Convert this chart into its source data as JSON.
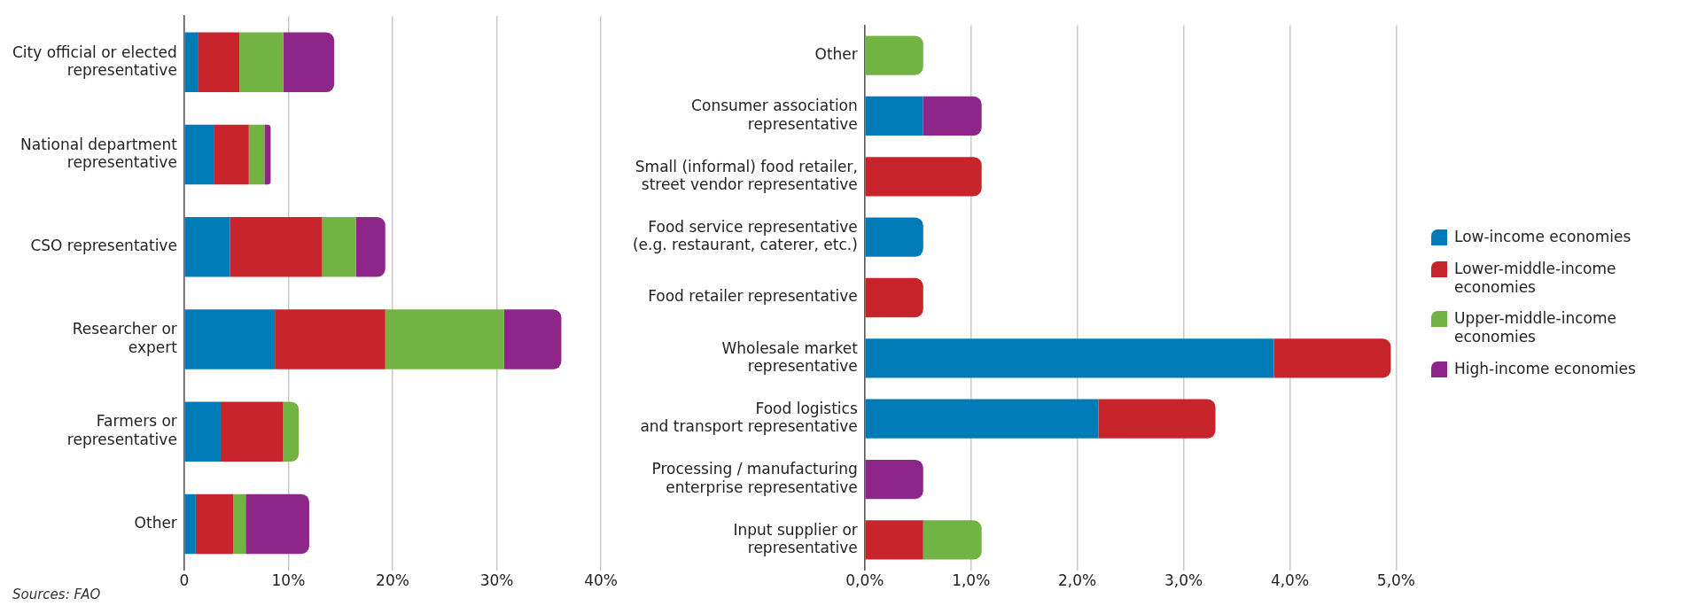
{
  "chart_data": [
    {
      "type": "bar",
      "orientation": "horizontal",
      "stacked": true,
      "grid": "x",
      "legend": false,
      "categories": [
        "City official or elected\nrepresentative",
        "National department\nrepresentative",
        "CSO representative",
        "Researcher or\nexpert",
        "Farmers or\nrepresentative",
        "Other"
      ],
      "series": [
        {
          "color": "#007bb8",
          "values": [
            1.3,
            2.9,
            4.4,
            8.7,
            3.5,
            1.1
          ]
        },
        {
          "color": "#c8242b",
          "values": [
            4.0,
            3.3,
            8.8,
            10.6,
            6.0,
            3.6
          ]
        },
        {
          "color": "#72b443",
          "values": [
            4.2,
            1.5,
            3.3,
            11.4,
            1.5,
            1.2
          ]
        },
        {
          "color": "#8e268a",
          "values": [
            4.9,
            0.6,
            2.8,
            5.5,
            0,
            6.1
          ]
        }
      ],
      "xlim": [
        0,
        40
      ],
      "xticks": [
        0,
        {
          "value": 10,
          "label": "10%"
        },
        {
          "value": 20,
          "label": "20%"
        },
        {
          "value": 30,
          "label": "30%"
        },
        {
          "value": 40,
          "label": "40%"
        }
      ],
      "annotations": [
        "Sources: FAO"
      ]
    },
    {
      "type": "bar",
      "orientation": "horizontal",
      "stacked": true,
      "grid": "x",
      "legend": "right",
      "categories": [
        "Other",
        "Consumer association\nrepresentative",
        "Small (informal) food retailer,\nstreet vendor representative",
        "Food service representative\n(e.g. restaurant, caterer, etc.)",
        "Food retailer representative",
        "Wholesale market\nrepresentative",
        "Food logistics\nand transport representative",
        "Processing / manufacturing\nenterprise representative",
        "Input supplier or\nrepresentative"
      ],
      "series": [
        {
          "name": "Low-income economies",
          "color": "#007bb8",
          "values": [
            0,
            0.55,
            0,
            0.55,
            0,
            3.85,
            2.2,
            0,
            0
          ]
        },
        {
          "name": "Lower-middle-income economies",
          "color": "#c8242b",
          "values": [
            0,
            0,
            1.1,
            0,
            0.55,
            1.1,
            1.1,
            0,
            0.55
          ]
        },
        {
          "name": "Upper-middle-income economies",
          "color": "#72b443",
          "values": [
            0.55,
            0,
            0,
            0,
            0,
            0,
            0,
            0,
            0.55
          ]
        },
        {
          "name": "High-income economies",
          "color": "#8e268a",
          "values": [
            0,
            0.55,
            0,
            0,
            0,
            0,
            0,
            0.55,
            0
          ]
        }
      ],
      "xlim": [
        0,
        5
      ],
      "xticks": [
        {
          "value": 0,
          "label": "0,0%"
        },
        {
          "value": 1,
          "label": "1,0%"
        },
        {
          "value": 2,
          "label": "2,0%"
        },
        {
          "value": 3,
          "label": "3,0%"
        },
        {
          "value": 4,
          "label": "4,0%"
        },
        {
          "value": 5,
          "label": "5,0%"
        }
      ]
    }
  ]
}
